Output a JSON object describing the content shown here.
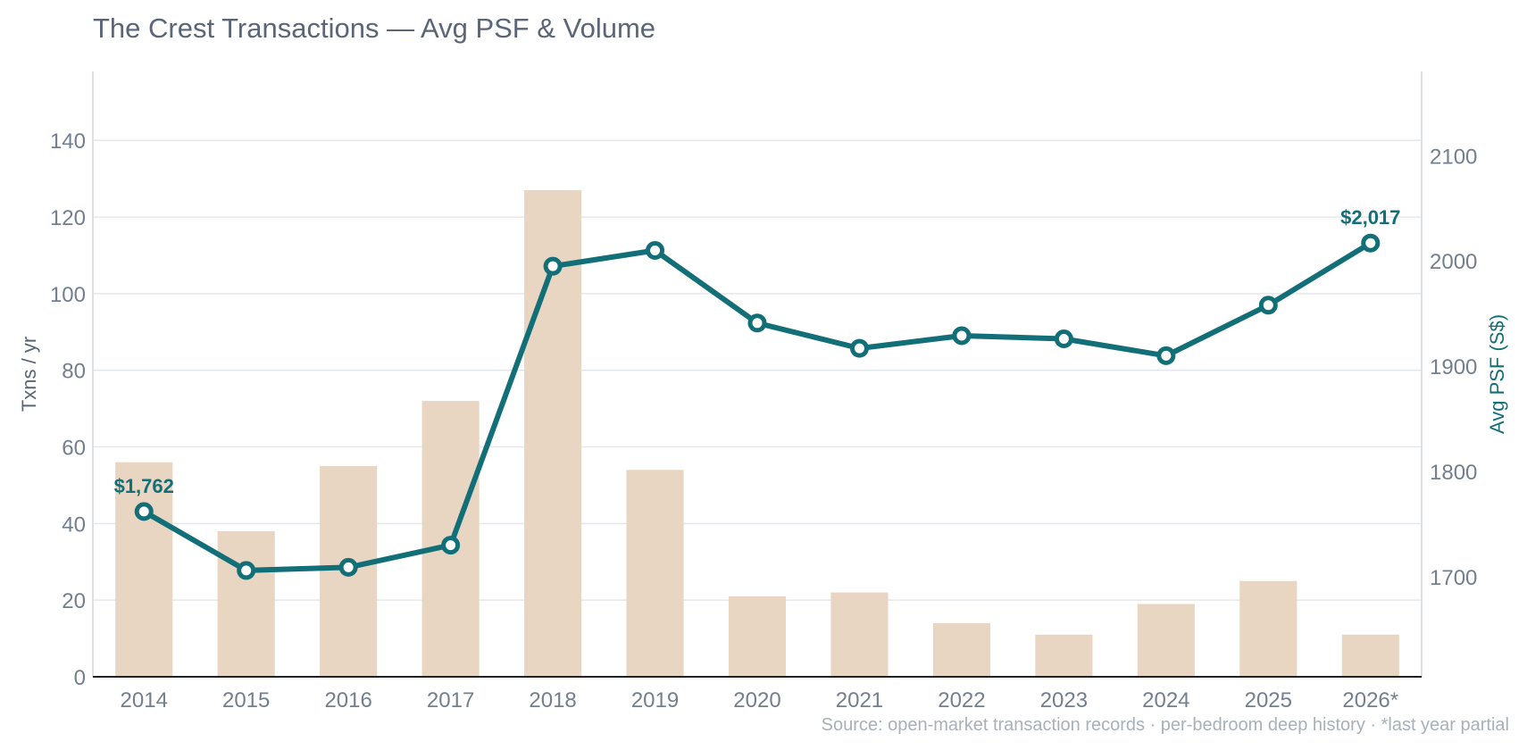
{
  "chart_data": {
    "type": "bar",
    "title": "The Crest Transactions — Avg PSF & Volume",
    "categories": [
      "2014",
      "2015",
      "2016",
      "2017",
      "2018",
      "2019",
      "2020",
      "2021",
      "2022",
      "2023",
      "2024",
      "2025",
      "2026*"
    ],
    "series": [
      {
        "type": "bar",
        "axis": "left",
        "values": [
          56,
          38,
          55,
          72,
          127,
          54,
          21,
          22,
          14,
          11,
          19,
          25,
          11
        ],
        "color": "#e8d6c2"
      },
      {
        "type": "line",
        "axis": "right",
        "values": [
          1762,
          1706,
          1709,
          1730,
          1995,
          2010,
          1941,
          1917,
          1929,
          1926,
          1910,
          1958,
          2017
        ],
        "color": "#126f78"
      }
    ],
    "ylabel": "Txns / yr",
    "ylim": [
      0,
      158
    ],
    "yticks": [
      0,
      20,
      40,
      60,
      80,
      100,
      120,
      140
    ],
    "y2label": "Avg PSF (S$)",
    "y2lim": [
      1605,
      2180
    ],
    "y2ticks": [
      1700,
      1800,
      1900,
      2000,
      2100
    ],
    "point_labels": [
      {
        "index": 0,
        "text": "$1,762"
      },
      {
        "index": 12,
        "text": "$2,017"
      }
    ],
    "grid": true,
    "note": "Source: open-market transaction records · per-bedroom deep history · *last year partial"
  }
}
